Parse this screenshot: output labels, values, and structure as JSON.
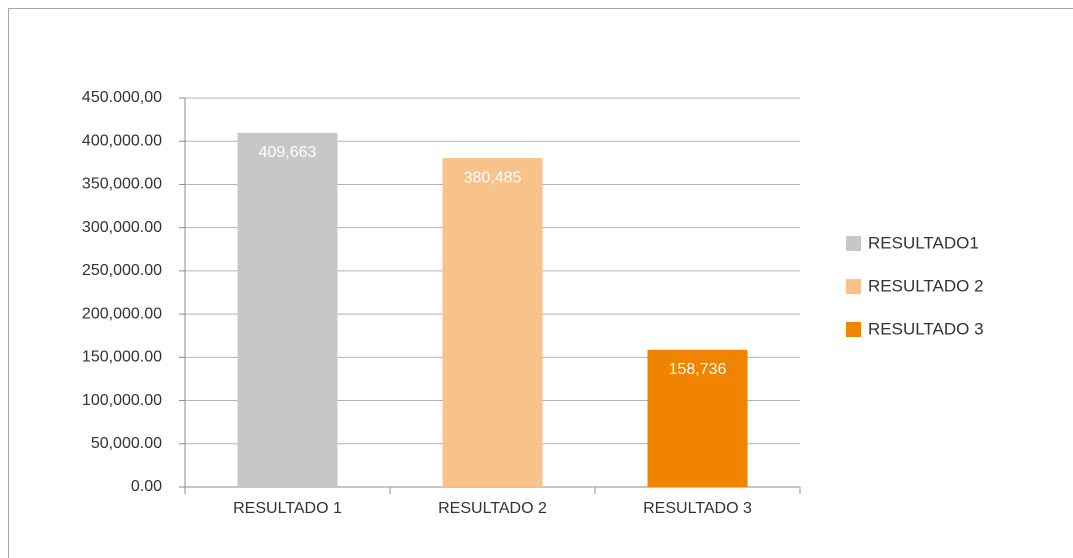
{
  "chart_data": {
    "type": "bar",
    "categories": [
      "RESULTADO 1",
      "RESULTADO 2",
      "RESULTADO 3"
    ],
    "values": [
      409663,
      380485,
      158736
    ],
    "value_labels": [
      "409,663",
      "380,485",
      "158,736"
    ],
    "colors": [
      "#c6c7c9",
      "#f8c28b",
      "#f08300"
    ],
    "ylim": [
      0,
      450000
    ],
    "yticks": [
      {
        "value": 0,
        "label": "0.00"
      },
      {
        "value": 50000,
        "label": "50,000.00"
      },
      {
        "value": 100000,
        "label": "100,000.00"
      },
      {
        "value": 150000,
        "label": "150,000.00"
      },
      {
        "value": 200000,
        "label": "200,000.00"
      },
      {
        "value": 250000,
        "label": "250,000.00"
      },
      {
        "value": 300000,
        "label": "300,000.00"
      },
      {
        "value": 350000,
        "label": "350,000.00"
      },
      {
        "value": 400000,
        "label": "400,000.00"
      },
      {
        "value": 450000,
        "label": "450.000,00"
      }
    ],
    "grid": true,
    "legend": {
      "position": "right",
      "entries": [
        "RESULTADO1",
        "RESULTADO 2",
        "RESULTADO 3"
      ]
    }
  }
}
